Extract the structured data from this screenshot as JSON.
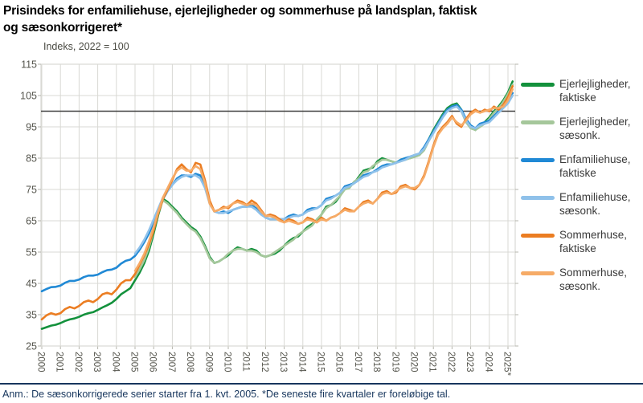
{
  "header": {
    "title_lines": [
      "Prisindeks for enfamiliehuse, ejerlejligheder og sommerhuse på landsplan, faktisk",
      "og sæsonkorrigeret*"
    ],
    "subtitle": "Indeks, 2022 = 100"
  },
  "footnote": "Anm.: De sæsonkorrigerede serier starter fra 1. kvt. 2005. *De seneste fire kvartaler er foreløbige tal.",
  "colors": {
    "green_faktisk": "#13913C",
    "green_saesonk": "#A5C79B",
    "blue_faktisk": "#2089D5",
    "blue_saesonk": "#8FC1EA",
    "orange_faktisk": "#EB7D22",
    "orange_saesonk": "#F6AB67",
    "grid": "#D9D9D4",
    "tick": "#B5B5AC",
    "axis_text": "#55554D",
    "reference_line": "#3F3F3F",
    "footer": "#17365D"
  },
  "legend": [
    {
      "id": "ejerlejligheder-faktiske",
      "color_key": "green_faktisk",
      "label_lines": [
        "Ejerlejligheder,",
        "faktiske"
      ]
    },
    {
      "id": "ejerlejligheder-saesonk",
      "color_key": "green_saesonk",
      "label_lines": [
        "Ejerlejligheder,",
        "sæsonk."
      ]
    },
    {
      "id": "enfamiliehuse-faktiske",
      "color_key": "blue_faktisk",
      "label_lines": [
        "Enfamiliehuse,",
        "faktiske"
      ]
    },
    {
      "id": "enfamiliehuse-saesonk",
      "color_key": "blue_saesonk",
      "label_lines": [
        "Enfamiliehuse,",
        "sæsonk."
      ]
    },
    {
      "id": "sommerhuse-faktiske",
      "color_key": "orange_faktisk",
      "label_lines": [
        "Sommerhuse,",
        "faktiske"
      ]
    },
    {
      "id": "sommerhuse-saesonk",
      "color_key": "orange_saesonk",
      "label_lines": [
        "Sommerhuse,",
        "sæsonk."
      ]
    }
  ],
  "chart_data": {
    "type": "line",
    "title": "Prisindeks for enfamiliehuse, ejerlejligheder og sommerhuse på landsplan, faktisk og sæsonkorrigeret*",
    "subtitle": "Indeks, 2022 = 100",
    "xlabel": "",
    "ylabel": "Indeks, 2022 = 100",
    "ylim": [
      25,
      115
    ],
    "x_range": [
      2000,
      2025.5
    ],
    "grid": true,
    "legend_position": "right",
    "reference_line_y": 100,
    "y_ticks": [
      "115",
      "105",
      "95",
      "85",
      "75",
      "65",
      "55",
      "45",
      "35",
      "25"
    ],
    "y_tick_values": [
      115,
      105,
      95,
      85,
      75,
      65,
      55,
      45,
      35,
      25
    ],
    "x_ticks": [
      "2000",
      "2001",
      "2002",
      "2003",
      "2004",
      "2005",
      "2006",
      "2007",
      "2008",
      "2009",
      "2010",
      "2011",
      "2012",
      "2013",
      "2014",
      "2015",
      "2016",
      "2017",
      "2018",
      "2019",
      "2020",
      "2021",
      "2022",
      "2023",
      "2024",
      "2025*"
    ],
    "frequency": "quarterly",
    "series": [
      {
        "name": "Ejerlejligheder, faktiske",
        "color_key": "green_faktisk",
        "start_year": 2000,
        "step": 0.25,
        "values": [
          30.5,
          31.0,
          31.5,
          31.8,
          32.3,
          33.0,
          33.5,
          33.8,
          34.3,
          35.0,
          35.5,
          35.8,
          36.5,
          37.3,
          38.0,
          38.8,
          40.0,
          41.5,
          42.5,
          43.5,
          46.0,
          48.5,
          51.5,
          55.5,
          61.0,
          67.0,
          72.0,
          71.0,
          69.5,
          68.0,
          66.0,
          64.5,
          63.0,
          62.0,
          60.0,
          57.0,
          53.5,
          51.5,
          52.0,
          53.0,
          54.0,
          55.5,
          56.5,
          56.0,
          55.5,
          56.0,
          55.5,
          54.0,
          53.5,
          54.0,
          54.5,
          55.5,
          57.0,
          58.5,
          59.5,
          60.0,
          61.5,
          63.0,
          64.0,
          65.0,
          67.0,
          69.5,
          70.0,
          71.0,
          73.0,
          75.5,
          76.0,
          77.0,
          79.0,
          81.0,
          81.5,
          82.0,
          84.0,
          85.0,
          84.5,
          84.0,
          83.5,
          84.5,
          85.0,
          85.0,
          85.5,
          86.0,
          88.0,
          91.0,
          94.0,
          96.5,
          99.0,
          101.0,
          102.0,
          102.5,
          100.5,
          97.0,
          95.0,
          94.0,
          95.5,
          96.5,
          98.0,
          100.0,
          101.5,
          103.5,
          106.0,
          109.5
        ]
      },
      {
        "name": "Ejerlejligheder, sæsonk.",
        "color_key": "green_saesonk",
        "start_year": 2005,
        "step": 0.25,
        "values": [
          47.0,
          49.5,
          52.5,
          56.5,
          62.0,
          68.0,
          71.5,
          70.5,
          69.0,
          67.5,
          65.5,
          64.0,
          62.5,
          61.5,
          59.5,
          56.5,
          53.0,
          51.5,
          52.0,
          53.0,
          54.5,
          55.5,
          56.0,
          56.0,
          55.5,
          55.5,
          55.0,
          54.0,
          53.5,
          54.0,
          55.0,
          56.0,
          57.0,
          58.0,
          59.0,
          60.5,
          61.5,
          62.5,
          63.5,
          65.5,
          67.0,
          69.0,
          70.0,
          71.5,
          73.0,
          75.0,
          75.5,
          77.5,
          78.5,
          80.5,
          81.0,
          82.5,
          83.5,
          84.5,
          84.5,
          84.0,
          83.5,
          84.0,
          84.5,
          85.0,
          85.5,
          86.0,
          87.5,
          90.5,
          93.5,
          96.0,
          98.5,
          100.5,
          101.5,
          102.0,
          100.0,
          96.5,
          94.5,
          94.0,
          95.0,
          96.0,
          97.5,
          99.5,
          101.0,
          103.0,
          105.5,
          108.5
        ]
      },
      {
        "name": "Enfamiliehuse, faktiske",
        "color_key": "blue_faktisk",
        "start_year": 2000,
        "step": 0.25,
        "values": [
          42.5,
          43.2,
          43.8,
          43.9,
          44.3,
          45.2,
          45.8,
          45.8,
          46.2,
          47.0,
          47.5,
          47.5,
          47.8,
          48.6,
          49.2,
          49.4,
          50.0,
          51.3,
          52.2,
          52.6,
          53.8,
          55.8,
          58.2,
          61.0,
          64.5,
          68.5,
          72.0,
          74.5,
          76.5,
          78.5,
          79.5,
          79.5,
          79.0,
          80.0,
          79.5,
          76.5,
          71.0,
          68.0,
          67.5,
          68.0,
          67.5,
          68.5,
          69.0,
          69.5,
          69.5,
          70.0,
          69.0,
          67.5,
          66.0,
          65.5,
          65.5,
          65.5,
          65.5,
          66.5,
          67.0,
          66.5,
          67.0,
          68.5,
          69.0,
          69.0,
          70.0,
          72.0,
          72.5,
          73.0,
          74.0,
          76.0,
          76.5,
          77.0,
          78.0,
          79.5,
          80.0,
          80.5,
          81.5,
          82.5,
          83.0,
          83.0,
          83.5,
          84.5,
          85.0,
          85.5,
          86.0,
          86.5,
          88.5,
          91.0,
          93.5,
          96.0,
          98.5,
          100.5,
          101.5,
          102.0,
          100.5,
          97.5,
          95.5,
          94.5,
          96.0,
          96.5,
          97.0,
          98.5,
          100.0,
          101.5,
          103.5,
          105.8
        ]
      },
      {
        "name": "Enfamiliehuse, sæsonk.",
        "color_key": "blue_saesonk",
        "start_year": 2005,
        "step": 0.25,
        "values": [
          54.5,
          56.5,
          59.0,
          62.0,
          65.5,
          69.0,
          72.5,
          74.5,
          76.5,
          78.0,
          79.0,
          79.5,
          79.5,
          79.5,
          78.5,
          75.5,
          70.5,
          68.0,
          67.5,
          67.5,
          68.0,
          68.5,
          69.0,
          69.5,
          69.5,
          69.5,
          68.5,
          67.0,
          66.0,
          65.5,
          65.5,
          65.5,
          65.5,
          66.0,
          66.5,
          66.5,
          67.0,
          68.0,
          68.5,
          69.0,
          70.0,
          71.5,
          72.0,
          73.0,
          74.0,
          75.5,
          76.0,
          77.0,
          78.0,
          79.0,
          79.5,
          80.5,
          81.0,
          82.0,
          82.5,
          83.0,
          83.5,
          84.0,
          84.5,
          85.5,
          86.0,
          86.5,
          88.0,
          90.5,
          93.0,
          95.5,
          98.0,
          100.0,
          101.0,
          101.5,
          100.0,
          97.0,
          95.0,
          94.5,
          95.5,
          96.0,
          96.5,
          98.0,
          99.5,
          101.0,
          102.5,
          105.0
        ]
      },
      {
        "name": "Sommerhuse, faktiske",
        "color_key": "orange_faktisk",
        "start_year": 2000,
        "step": 0.25,
        "values": [
          33.5,
          34.8,
          35.5,
          35.0,
          35.5,
          36.8,
          37.5,
          37.0,
          37.8,
          39.0,
          39.5,
          39.0,
          40.0,
          41.5,
          42.0,
          41.5,
          43.0,
          45.0,
          46.0,
          46.0,
          48.0,
          51.0,
          54.0,
          57.5,
          62.0,
          67.5,
          72.0,
          75.0,
          78.0,
          81.5,
          83.0,
          81.5,
          80.5,
          83.5,
          83.0,
          78.0,
          71.5,
          68.0,
          68.5,
          69.5,
          69.0,
          70.5,
          71.5,
          71.0,
          70.0,
          71.5,
          70.5,
          68.5,
          66.5,
          67.0,
          66.5,
          65.5,
          64.5,
          65.5,
          65.0,
          64.0,
          64.5,
          66.0,
          65.5,
          64.5,
          66.0,
          65.0,
          66.0,
          66.5,
          67.5,
          69.0,
          68.5,
          68.0,
          69.5,
          71.0,
          71.5,
          70.5,
          72.0,
          74.0,
          74.5,
          73.5,
          74.0,
          76.0,
          76.5,
          75.5,
          75.0,
          76.5,
          79.5,
          84.0,
          89.0,
          93.0,
          95.0,
          96.5,
          98.5,
          96.0,
          95.0,
          97.5,
          99.5,
          100.5,
          99.5,
          100.5,
          100.0,
          101.5,
          100.5,
          102.0,
          104.5,
          108.0
        ]
      },
      {
        "name": "Sommerhuse, sæsonk.",
        "color_key": "orange_saesonk",
        "start_year": 2005,
        "step": 0.25,
        "values": [
          49.0,
          51.5,
          54.5,
          58.5,
          63.0,
          68.0,
          72.5,
          75.5,
          78.5,
          81.0,
          82.0,
          81.0,
          81.0,
          82.5,
          81.5,
          77.0,
          70.5,
          68.0,
          68.5,
          69.0,
          69.5,
          70.5,
          71.0,
          70.5,
          70.0,
          70.5,
          70.0,
          68.0,
          66.5,
          66.5,
          66.0,
          65.0,
          64.5,
          65.0,
          64.5,
          64.0,
          64.5,
          65.5,
          65.0,
          64.5,
          65.5,
          65.0,
          66.0,
          66.5,
          67.5,
          68.5,
          68.0,
          68.0,
          69.5,
          70.5,
          71.0,
          70.5,
          72.0,
          73.5,
          74.0,
          73.5,
          74.5,
          75.5,
          76.0,
          75.5,
          75.5,
          76.5,
          79.0,
          83.5,
          88.5,
          92.5,
          94.5,
          96.0,
          98.0,
          96.5,
          95.5,
          97.0,
          99.0,
          100.0,
          99.5,
          100.0,
          100.5,
          101.0,
          101.0,
          101.5,
          103.5,
          107.0
        ]
      }
    ]
  }
}
